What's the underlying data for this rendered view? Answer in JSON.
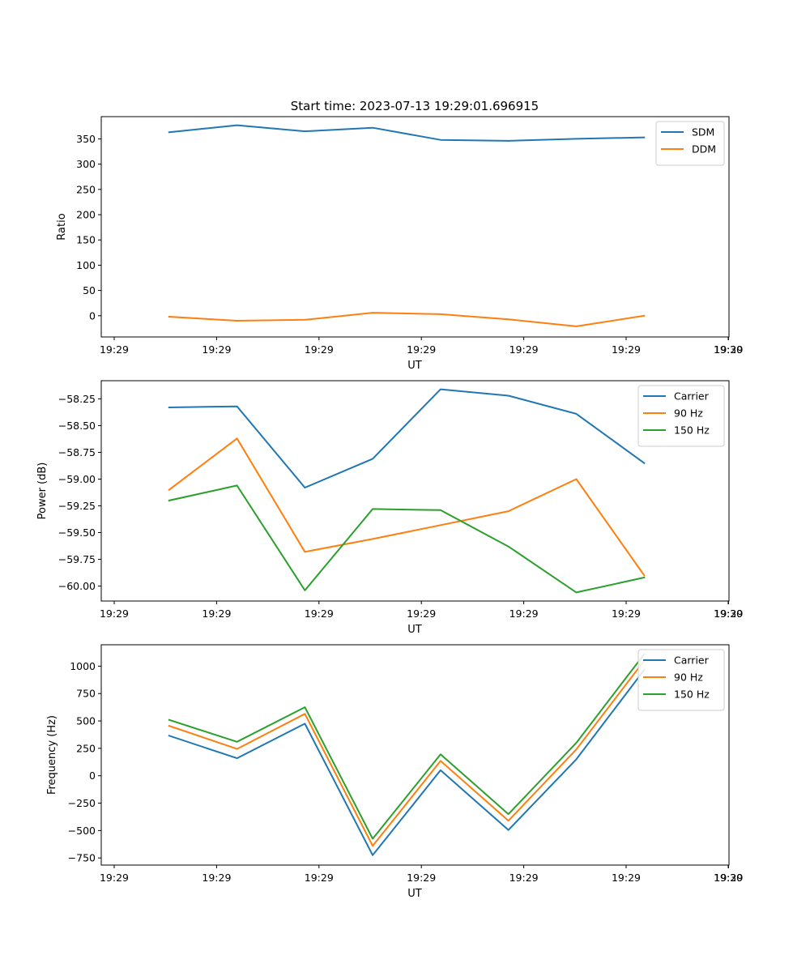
{
  "figure_title": "Start time: 2023-07-13 19:29:01.696915",
  "chart_data": [
    {
      "type": "line",
      "title": "Start time: 2023-07-13 19:29:01.696915",
      "xlabel": "UT",
      "ylabel": "Ratio",
      "x_tick_labels": [
        "19:29",
        "19:29",
        "19:29",
        "19:29",
        "19:29",
        "19:29",
        "19:29"
      ],
      "x_end_tick_label": "19:30",
      "x": [
        1,
        2,
        3,
        4,
        5,
        6,
        7,
        8
      ],
      "xlim": [
        0,
        9.25
      ],
      "ylim": [
        -42,
        394
      ],
      "y_ticks": [
        0,
        50,
        100,
        150,
        200,
        250,
        300,
        350
      ],
      "y_tick_labels": [
        "0",
        "50",
        "100",
        "150",
        "200",
        "250",
        "300",
        "350"
      ],
      "legend_position": "top-right",
      "series": [
        {
          "name": "SDM",
          "color": "#1f77b4",
          "values": [
            363,
            377,
            365,
            372,
            348,
            346,
            350,
            353
          ]
        },
        {
          "name": "DDM",
          "color": "#ff7f0e",
          "values": [
            -2,
            -10,
            -8,
            6,
            3,
            -7,
            -21,
            0
          ]
        }
      ]
    },
    {
      "type": "line",
      "title": "",
      "xlabel": "UT",
      "ylabel": "Power (dB)",
      "x_tick_labels": [
        "19:29",
        "19:29",
        "19:29",
        "19:29",
        "19:29",
        "19:29",
        "19:29"
      ],
      "x_end_tick_label": "19:30",
      "x": [
        1,
        2,
        3,
        4,
        5,
        6,
        7,
        8
      ],
      "xlim": [
        0,
        9.25
      ],
      "ylim": [
        -60.14,
        -58.08
      ],
      "y_ticks": [
        -60.0,
        -59.75,
        -59.5,
        -59.25,
        -59.0,
        -58.75,
        -58.5,
        -58.25
      ],
      "y_tick_labels": [
        "−60.00",
        "−59.75",
        "−59.50",
        "−59.25",
        "−59.00",
        "−58.75",
        "−58.50",
        "−58.25"
      ],
      "legend_position": "top-right",
      "series": [
        {
          "name": "Carrier",
          "color": "#1f77b4",
          "values": [
            -58.33,
            -58.32,
            -59.08,
            -58.81,
            -58.16,
            -58.22,
            -58.39,
            -58.85
          ]
        },
        {
          "name": "90 Hz",
          "color": "#ff7f0e",
          "values": [
            -59.1,
            -58.62,
            -59.68,
            -59.56,
            -59.43,
            -59.3,
            -59.0,
            -59.9
          ]
        },
        {
          "name": "150 Hz",
          "color": "#2ca02c",
          "values": [
            -59.2,
            -59.06,
            -60.04,
            -59.28,
            -59.29,
            -59.63,
            -60.06,
            -59.92
          ]
        }
      ]
    },
    {
      "type": "line",
      "title": "",
      "xlabel": "UT",
      "ylabel": "Frequency (Hz)",
      "x_tick_labels": [
        "19:29",
        "19:29",
        "19:29",
        "19:29",
        "19:29",
        "19:29",
        "19:29"
      ],
      "x_end_tick_label": "19:30",
      "x": [
        1,
        2,
        3,
        4,
        5,
        6,
        7,
        8
      ],
      "xlim": [
        0,
        9.25
      ],
      "ylim": [
        -815,
        1195
      ],
      "y_ticks": [
        -750,
        -500,
        -250,
        0,
        250,
        500,
        750,
        1000
      ],
      "y_tick_labels": [
        "−750",
        "−500",
        "−250",
        "0",
        "250",
        "500",
        "750",
        "1000"
      ],
      "legend_position": "top-right",
      "series": [
        {
          "name": "Carrier",
          "color": "#1f77b4",
          "values": [
            365,
            160,
            475,
            -725,
            50,
            -495,
            150,
            965
          ]
        },
        {
          "name": "90 Hz",
          "color": "#ff7f0e",
          "values": [
            455,
            245,
            565,
            -640,
            135,
            -410,
            240,
            1050
          ]
        },
        {
          "name": "150 Hz",
          "color": "#2ca02c",
          "values": [
            510,
            310,
            625,
            -575,
            195,
            -350,
            300,
            1110
          ]
        }
      ]
    }
  ]
}
